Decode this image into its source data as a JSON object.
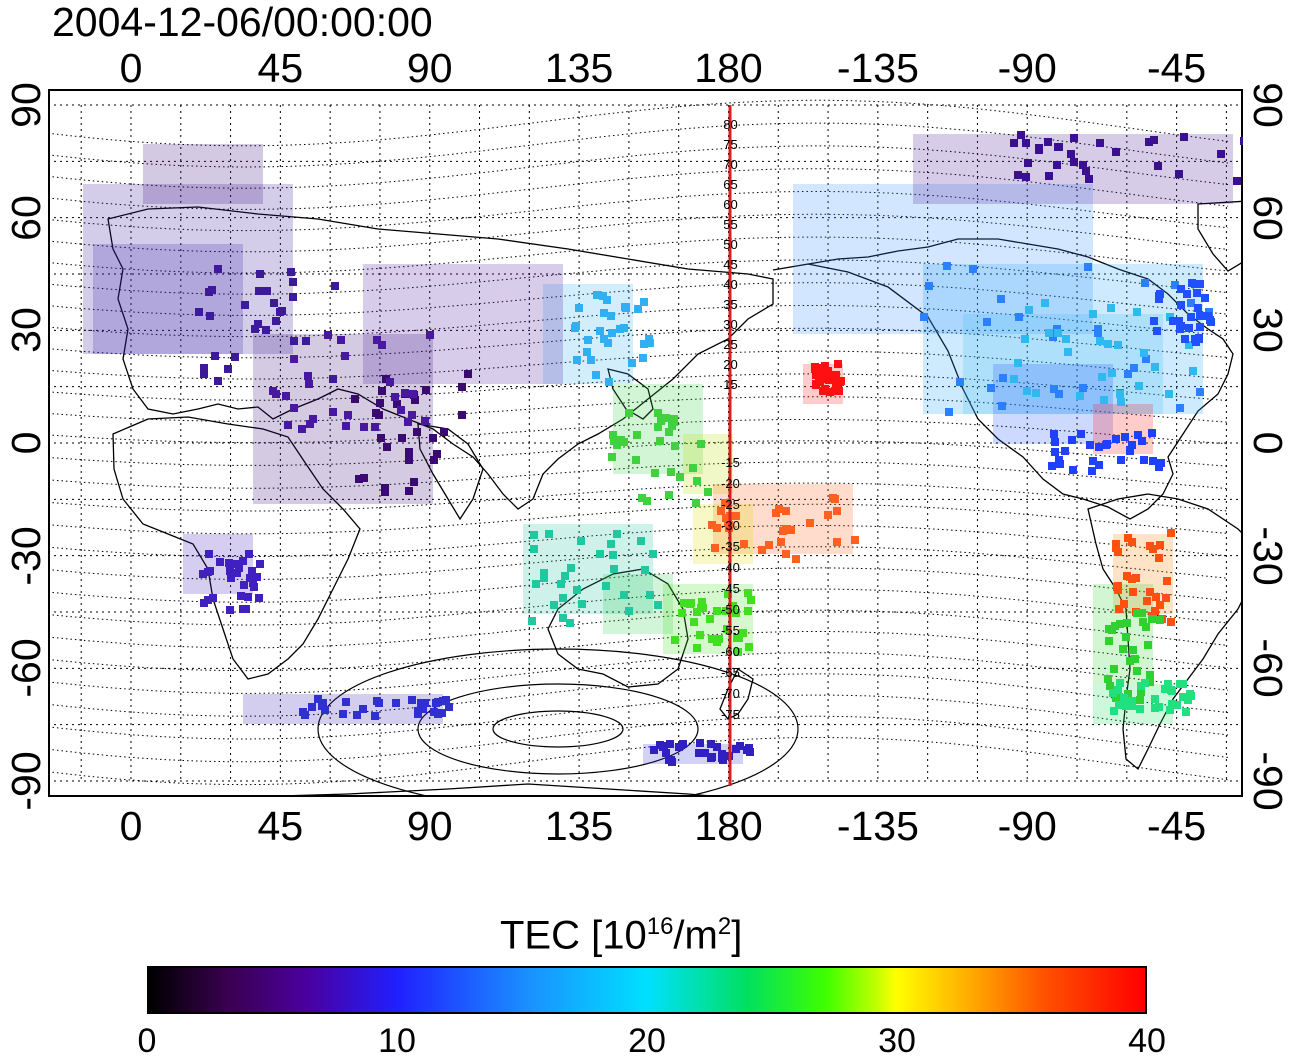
{
  "title": "2004-12-06/00:00:00",
  "x_ticks": [
    {
      "label": "0",
      "lon": 0
    },
    {
      "label": "45",
      "lon": 45
    },
    {
      "label": "90",
      "lon": 90
    },
    {
      "label": "135",
      "lon": 135
    },
    {
      "label": "180",
      "lon": 180
    },
    {
      "label": "-135",
      "lon": 225
    },
    {
      "label": "-90",
      "lon": 270
    },
    {
      "label": "-45",
      "lon": 315
    }
  ],
  "y_ticks": [
    {
      "label": "90",
      "lat": 90
    },
    {
      "label": "60",
      "lat": 60
    },
    {
      "label": "30",
      "lat": 30
    },
    {
      "label": "0",
      "lat": 0
    },
    {
      "label": "-30",
      "lat": -30
    },
    {
      "label": "-60",
      "lat": -60
    },
    {
      "label": "-90",
      "lat": -90
    }
  ],
  "map": {
    "lon_range": [
      -25,
      335
    ],
    "lat_range": [
      -90,
      90
    ],
    "meridian_line_lon": 180,
    "meridian_line_color": "#d42020",
    "contour_labels_north": [
      "80",
      "75",
      "70",
      "65",
      "60",
      "55",
      "50",
      "45",
      "40",
      "35",
      "30",
      "25",
      "20",
      "15"
    ],
    "contour_labels_south": [
      "-15",
      "-20",
      "-25",
      "-30",
      "-35",
      "-40",
      "-45",
      "-50",
      "-55",
      "-60",
      "-65",
      "-70",
      "-75"
    ]
  },
  "colorbar": {
    "label_main": "TEC  [10",
    "label_exp1": "16",
    "label_mid": "/m",
    "label_exp2": "2",
    "label_end": "]",
    "ticks": [
      {
        "label": "0",
        "value": 0
      },
      {
        "label": "10",
        "value": 10
      },
      {
        "label": "20",
        "value": 20
      },
      {
        "label": "30",
        "value": 30
      },
      {
        "label": "40",
        "value": 40
      }
    ],
    "range": [
      0,
      40
    ]
  }
}
